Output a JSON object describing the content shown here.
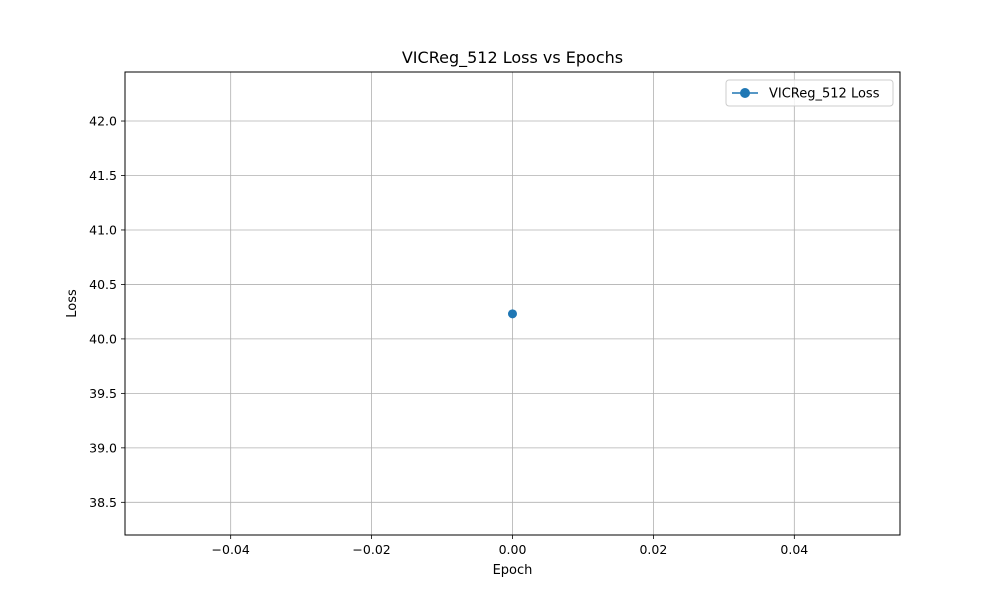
{
  "chart_data": {
    "type": "line",
    "title": "VICReg_512 Loss vs Epochs",
    "xlabel": "Epoch",
    "ylabel": "Loss",
    "xlim": [
      -0.055,
      0.055
    ],
    "ylim": [
      38.2,
      42.45
    ],
    "xticks": [
      -0.04,
      -0.02,
      0.0,
      0.02,
      0.04
    ],
    "xtick_labels": [
      "−0.04",
      "−0.02",
      "0.00",
      "0.02",
      "0.04"
    ],
    "yticks": [
      38.5,
      39.0,
      39.5,
      40.0,
      40.5,
      41.0,
      41.5,
      42.0
    ],
    "ytick_labels": [
      "38.5",
      "39.0",
      "39.5",
      "40.0",
      "40.5",
      "41.0",
      "41.5",
      "42.0"
    ],
    "grid": true,
    "legend_position": "top-right",
    "series": [
      {
        "name": "VICReg_512 Loss",
        "color": "#1f77b4",
        "marker": "circle",
        "x": [
          0
        ],
        "y": [
          40.23
        ]
      }
    ]
  }
}
